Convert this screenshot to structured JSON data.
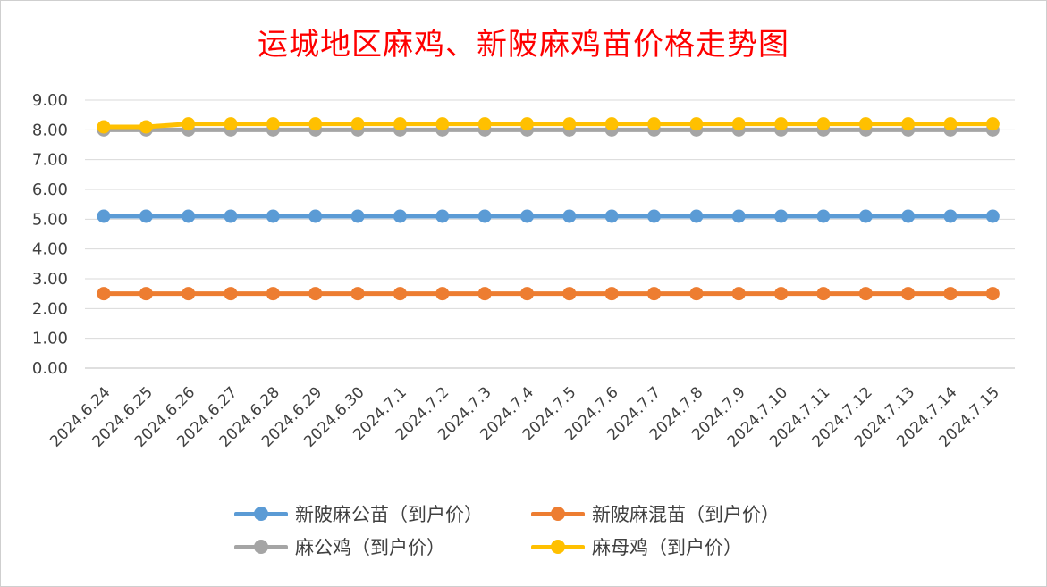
{
  "chart_data": {
    "type": "line",
    "title": "运城地区麻鸡、新陂麻鸡苗价格走势图",
    "xlabel": "",
    "ylabel": "",
    "ylim": [
      0,
      9
    ],
    "y_ticks": [
      "0.00",
      "1.00",
      "2.00",
      "3.00",
      "4.00",
      "5.00",
      "6.00",
      "7.00",
      "8.00",
      "9.00"
    ],
    "grid": "horizontal",
    "legend_position": "bottom",
    "categories": [
      "2024.6.24",
      "2024.6.25",
      "2024.6.26",
      "2024.6.27",
      "2024.6.28",
      "2024.6.29",
      "2024.6.30",
      "2024.7.1",
      "2024.7.2",
      "2024.7.3",
      "2024.7.4",
      "2024.7.5",
      "2024.7.6",
      "2024.7.7",
      "2024.7.8",
      "2024.7.9",
      "2024.7.10",
      "2024.7.11",
      "2024.7.12",
      "2024.7.13",
      "2024.7.14",
      "2024.7.15"
    ],
    "series": [
      {
        "name": "新陂麻公苗（到户价）",
        "color": "#5b9bd5",
        "values": [
          5.1,
          5.1,
          5.1,
          5.1,
          5.1,
          5.1,
          5.1,
          5.1,
          5.1,
          5.1,
          5.1,
          5.1,
          5.1,
          5.1,
          5.1,
          5.1,
          5.1,
          5.1,
          5.1,
          5.1,
          5.1,
          5.1
        ]
      },
      {
        "name": "新陂麻混苗（到户价）",
        "color": "#ed7d31",
        "values": [
          2.5,
          2.5,
          2.5,
          2.5,
          2.5,
          2.5,
          2.5,
          2.5,
          2.5,
          2.5,
          2.5,
          2.5,
          2.5,
          2.5,
          2.5,
          2.5,
          2.5,
          2.5,
          2.5,
          2.5,
          2.5,
          2.5
        ]
      },
      {
        "name": "麻公鸡（到户价）",
        "color": "#a5a5a5",
        "values": [
          8.0,
          8.0,
          8.0,
          8.0,
          8.0,
          8.0,
          8.0,
          8.0,
          8.0,
          8.0,
          8.0,
          8.0,
          8.0,
          8.0,
          8.0,
          8.0,
          8.0,
          8.0,
          8.0,
          8.0,
          8.0,
          8.0
        ]
      },
      {
        "name": "麻母鸡（到户价）",
        "color": "#ffc000",
        "values": [
          8.1,
          8.1,
          8.2,
          8.2,
          8.2,
          8.2,
          8.2,
          8.2,
          8.2,
          8.2,
          8.2,
          8.2,
          8.2,
          8.2,
          8.2,
          8.2,
          8.2,
          8.2,
          8.2,
          8.2,
          8.2,
          8.2
        ]
      }
    ]
  },
  "legend_rows": [
    [
      0,
      1
    ],
    [
      2,
      3
    ]
  ]
}
